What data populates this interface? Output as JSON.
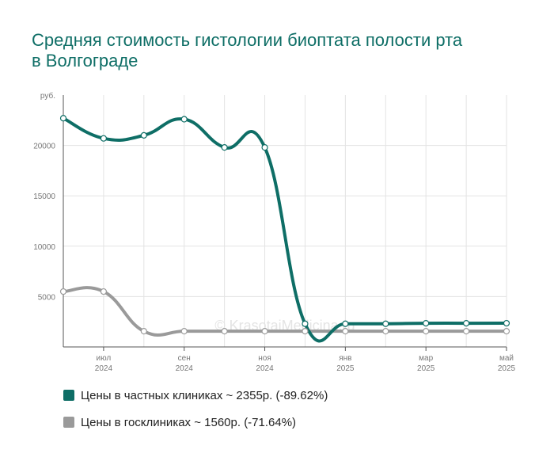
{
  "chart_data": {
    "type": "line",
    "title": "Средняя стоимость гистологии биоптата полости рта в Волгограде",
    "ylabel": "руб.",
    "ylim": [
      0,
      25000
    ],
    "yticks": [
      5000,
      10000,
      15000,
      20000
    ],
    "x_tick_labels": [
      {
        "month": "июл",
        "year": "2024"
      },
      {
        "month": "сен",
        "year": "2024"
      },
      {
        "month": "ноя",
        "year": "2024"
      },
      {
        "month": "янв",
        "year": "2025"
      },
      {
        "month": "мар",
        "year": "2025"
      },
      {
        "month": "май",
        "year": "2025"
      }
    ],
    "x": [
      "2024-06",
      "2024-07",
      "2024-08",
      "2024-09",
      "2024-10",
      "2024-11",
      "2024-12",
      "2025-01",
      "2025-02",
      "2025-03",
      "2025-04",
      "2025-05"
    ],
    "series": [
      {
        "name": "Цены в частных клиниках ~ 2355р. (-89.62%)",
        "color": "#0e6e66",
        "values": [
          22700,
          20700,
          21000,
          22600,
          19800,
          19800,
          2300,
          2300,
          2300,
          2350,
          2350,
          2355
        ]
      },
      {
        "name": "Цены в госклиниках ~ 1560р. (-71.64%)",
        "color": "#9a9a9a",
        "values": [
          5500,
          5500,
          1560,
          1560,
          1560,
          1560,
          1560,
          1560,
          1560,
          1560,
          1560,
          1560
        ]
      }
    ],
    "watermark": "© KrasotaiMedicina.ru",
    "grid": true,
    "legend_position": "bottom"
  }
}
